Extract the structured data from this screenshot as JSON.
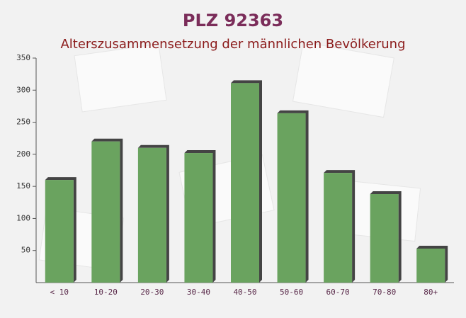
{
  "chart_data": {
    "type": "bar",
    "title": "PLZ 92363",
    "subtitle": "Alterszusammensetzung der männlichen Bevölkerung",
    "categories": [
      "< 10",
      "10-20",
      "20-30",
      "30-40",
      "40-50",
      "50-60",
      "60-70",
      "70-80",
      "80+"
    ],
    "values": [
      160,
      220,
      210,
      202,
      311,
      264,
      171,
      138,
      53
    ],
    "color": "#6aa35f",
    "ylim": [
      0,
      350
    ],
    "yticks": [
      50,
      100,
      150,
      200,
      250,
      300,
      350
    ]
  }
}
